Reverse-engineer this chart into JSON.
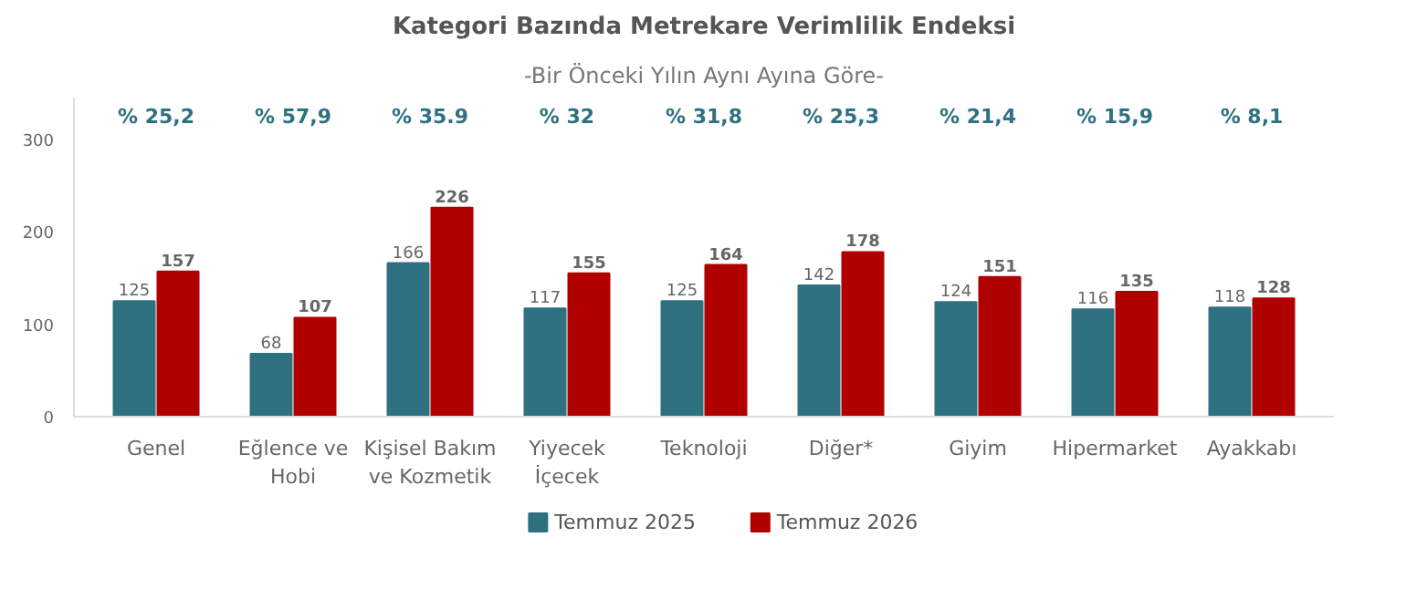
{
  "chart_data": {
    "type": "bar",
    "title": "Kategori Bazında Metrekare Verimlilik Endeksi",
    "subtitle": "-Bir Önceki Yılın Aynı Ayına Göre-",
    "categories": [
      "Genel",
      "Eğlence ve\nHobi",
      "Kişisel Bakım\nve Kozmetik",
      "Yiyecek\nİçecek",
      "Teknoloji",
      "Diğer*",
      "Giyim",
      "Hipermarket",
      "Ayakkabı"
    ],
    "series": [
      {
        "name": "Temmuz 2025",
        "color": "#2e7180",
        "values": [
          125,
          68,
          166,
          117,
          125,
          142,
          124,
          116,
          118
        ]
      },
      {
        "name": "Temmuz 2026",
        "color": "#b00000",
        "values": [
          157,
          107,
          226,
          155,
          164,
          178,
          151,
          135,
          128
        ]
      }
    ],
    "ylim": [
      0,
      345
    ],
    "yticks": [
      0,
      100,
      200,
      300
    ],
    "grid": false,
    "legend": "bottom",
    "data_labels": true,
    "annotations": [
      "% 25,2",
      "% 57,9",
      "% 35.9",
      "% 32",
      "% 31,8",
      "% 25,3",
      "% 21,4",
      "% 15,9",
      "% 8,1"
    ]
  }
}
